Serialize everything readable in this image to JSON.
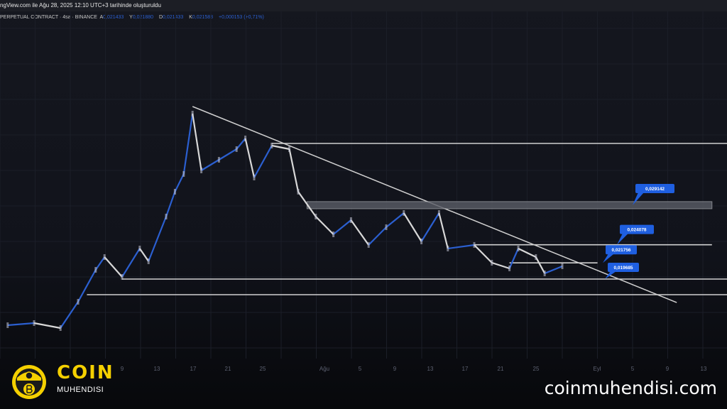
{
  "header": {
    "created_text": "ngView.com ile Ağu 28, 2025 12:10 UTC+3 tarihinde oluşturuldu",
    "symbol_text": "PERPETUAL CONTRACT · 4sa · BINANCE",
    "open_label": "A",
    "open": "0,021433",
    "high_label": "Y",
    "high": "0,021880",
    "low_label": "D",
    "low": "0,021433",
    "close_label": "K",
    "close": "0,021588",
    "change": "+0,000153 (+0,71%)"
  },
  "chart_data": {
    "type": "line",
    "style": "candlestick (approximated by close path)",
    "timeframe": "4sa",
    "x_tick_labels": [
      "9",
      "13",
      "17",
      "21",
      "25",
      "Ağu",
      "5",
      "9",
      "13",
      "17",
      "21",
      "25",
      "Eyl",
      "5",
      "9",
      "13"
    ],
    "grid": true,
    "colors": {
      "up": "#2b5fd0",
      "down": "#d8d8d8",
      "background": "#13151d",
      "drawing": "#d0d0d0",
      "label": "#1f5fe0"
    },
    "series": [
      {
        "points": [
          [
            "2025-06-26",
            0.013776
          ],
          [
            "2025-06-29",
            0.014049
          ],
          [
            "2025-07-02",
            0.013413
          ],
          [
            "2025-07-04",
            0.016776
          ],
          [
            "2025-07-06",
            0.020867
          ],
          [
            "2025-07-07",
            0.022503
          ],
          [
            "2025-07-09",
            0.019958
          ],
          [
            "2025-07-11",
            0.023594
          ],
          [
            "2025-07-12",
            0.021958
          ],
          [
            "2025-07-14",
            0.027684
          ],
          [
            "2025-07-15",
            0.030866
          ],
          [
            "2025-07-16",
            0.033138
          ],
          [
            "2025-07-17",
            0.040865
          ],
          [
            "2025-07-18",
            0.033593
          ],
          [
            "2025-07-20",
            0.034956
          ],
          [
            "2025-07-22",
            0.03632
          ],
          [
            "2025-07-23",
            0.037683
          ],
          [
            "2025-07-24",
            0.032684
          ],
          [
            "2025-07-26",
            0.036774
          ],
          [
            "2025-07-28",
            0.03632
          ],
          [
            "2025-07-29",
            0.030866
          ],
          [
            "2025-07-31",
            0.027684
          ],
          [
            "2025-08-02",
            0.025412
          ],
          [
            "2025-08-04",
            0.02723
          ],
          [
            "2025-08-06",
            0.024048
          ],
          [
            "2025-08-08",
            0.026321
          ],
          [
            "2025-08-10",
            0.028139
          ],
          [
            "2025-08-12",
            0.024503
          ],
          [
            "2025-08-14",
            0.028139
          ],
          [
            "2025-08-15",
            0.023594
          ],
          [
            "2025-08-18",
            0.024048
          ],
          [
            "2025-08-20",
            0.021776
          ],
          [
            "2025-08-22",
            0.021049
          ],
          [
            "2025-08-23",
            0.023594
          ],
          [
            "2025-08-25",
            0.022503
          ],
          [
            "2025-08-26",
            0.020412
          ],
          [
            "2025-08-28",
            0.021321
          ]
        ]
      }
    ],
    "drawings": [
      {
        "type": "trendline",
        "from": [
          "2025-07-17",
          0.041774
        ],
        "to": [
          "2025-09-10",
          0.016684
        ]
      },
      {
        "type": "hline",
        "price": 0.037046,
        "from": "2025-07-26"
      },
      {
        "type": "zone",
        "price": 0.029142,
        "low": 0.02869,
        "high": 0.0296,
        "from": "2025-07-30",
        "to": "2025-09-14",
        "label": "0,029142"
      },
      {
        "type": "hline",
        "price": 0.024078,
        "from": "2025-08-18",
        "to": "2025-09-14",
        "label": "0,024078"
      },
      {
        "type": "hline",
        "price": 0.021756,
        "from": "2025-08-22",
        "to": "2025-09-01",
        "label": "0,021756"
      },
      {
        "type": "hline",
        "price": 0.019685,
        "from": "2025-07-09",
        "label": "0,019685"
      },
      {
        "type": "hline",
        "price": 0.017685,
        "from": "2025-07-05"
      }
    ]
  },
  "branding": {
    "coin": "COIN",
    "muhendisi": "MUHENDISI",
    "site": "coinmuhendisi.com"
  }
}
